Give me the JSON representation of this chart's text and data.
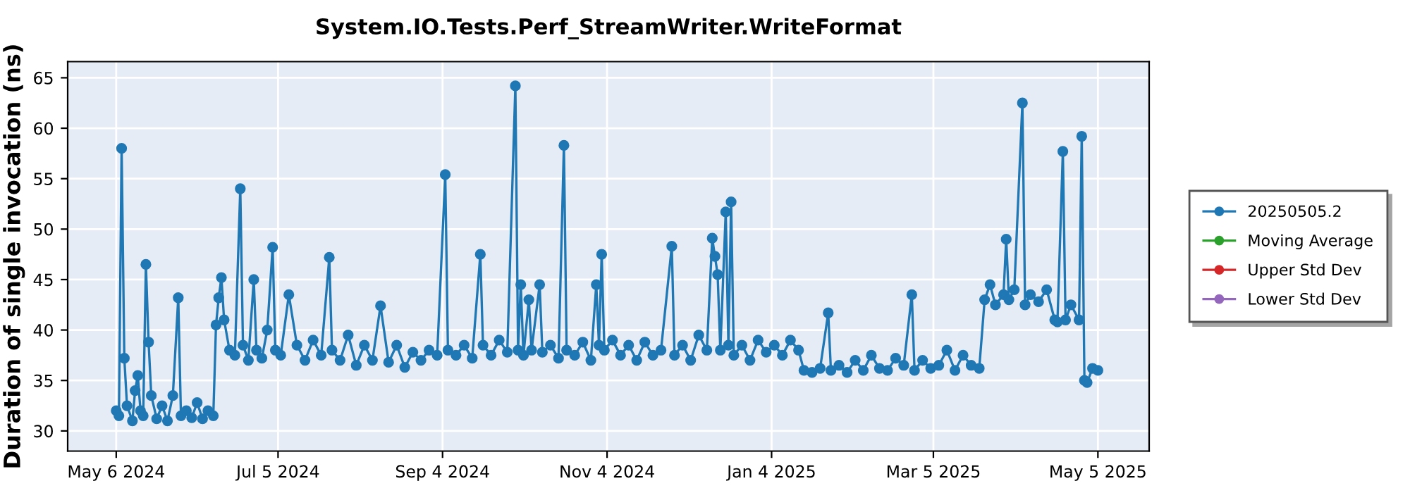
{
  "chart_data": {
    "type": "line",
    "title": "System.IO.Tests.Perf_StreamWriter.WriteFormat",
    "ylabel": "Duration of single invocation (ns)",
    "xlim": [
      "2024-04-18",
      "2025-05-24"
    ],
    "xticks": [
      {
        "value": "2024-05-06",
        "label": "May 6 2024"
      },
      {
        "value": "2024-07-05",
        "label": "Jul 5 2024"
      },
      {
        "value": "2024-09-04",
        "label": "Sep 4 2024"
      },
      {
        "value": "2024-11-04",
        "label": "Nov 4 2024"
      },
      {
        "value": "2025-01-04",
        "label": "Jan 4 2025"
      },
      {
        "value": "2025-03-05",
        "label": "Mar 5 2025"
      },
      {
        "value": "2025-05-05",
        "label": "May 5 2025"
      }
    ],
    "ylim": [
      28,
      66.6
    ],
    "yticks": [
      30,
      35,
      40,
      45,
      50,
      55,
      60,
      65
    ],
    "grid": true,
    "legend": "right",
    "marker": "circle",
    "line_style": "solid",
    "series": [
      {
        "name": "20250505.2",
        "color": "#1f77b4",
        "x": [
          "2024-05-06",
          "2024-05-07",
          "2024-05-08",
          "2024-05-09",
          "2024-05-10",
          "2024-05-12",
          "2024-05-13",
          "2024-05-14",
          "2024-05-15",
          "2024-05-16",
          "2024-05-17",
          "2024-05-18",
          "2024-05-19",
          "2024-05-21",
          "2024-05-23",
          "2024-05-25",
          "2024-05-27",
          "2024-05-29",
          "2024-05-30",
          "2024-06-01",
          "2024-06-03",
          "2024-06-05",
          "2024-06-07",
          "2024-06-09",
          "2024-06-11",
          "2024-06-12",
          "2024-06-13",
          "2024-06-14",
          "2024-06-15",
          "2024-06-17",
          "2024-06-19",
          "2024-06-21",
          "2024-06-22",
          "2024-06-24",
          "2024-06-26",
          "2024-06-27",
          "2024-06-29",
          "2024-07-01",
          "2024-07-03",
          "2024-07-04",
          "2024-07-06",
          "2024-07-09",
          "2024-07-12",
          "2024-07-15",
          "2024-07-18",
          "2024-07-21",
          "2024-07-24",
          "2024-07-25",
          "2024-07-28",
          "2024-07-31",
          "2024-08-03",
          "2024-08-06",
          "2024-08-09",
          "2024-08-12",
          "2024-08-15",
          "2024-08-18",
          "2024-08-21",
          "2024-08-24",
          "2024-08-27",
          "2024-08-30",
          "2024-09-02",
          "2024-09-05",
          "2024-09-06",
          "2024-09-09",
          "2024-09-12",
          "2024-09-15",
          "2024-09-18",
          "2024-09-19",
          "2024-09-22",
          "2024-09-25",
          "2024-09-28",
          "2024-10-01",
          "2024-10-02",
          "2024-10-03",
          "2024-10-04",
          "2024-10-06",
          "2024-10-07",
          "2024-10-10",
          "2024-10-11",
          "2024-10-14",
          "2024-10-17",
          "2024-10-19",
          "2024-10-20",
          "2024-10-23",
          "2024-10-26",
          "2024-10-29",
          "2024-10-31",
          "2024-11-01",
          "2024-11-02",
          "2024-11-03",
          "2024-11-06",
          "2024-11-09",
          "2024-11-12",
          "2024-11-15",
          "2024-11-18",
          "2024-11-21",
          "2024-11-24",
          "2024-11-28",
          "2024-11-29",
          "2024-12-02",
          "2024-12-05",
          "2024-12-08",
          "2024-12-11",
          "2024-12-13",
          "2024-12-14",
          "2024-12-15",
          "2024-12-16",
          "2024-12-18",
          "2024-12-19",
          "2024-12-20",
          "2024-12-21",
          "2024-12-24",
          "2024-12-27",
          "2024-12-30",
          "2025-01-02",
          "2025-01-05",
          "2025-01-08",
          "2025-01-11",
          "2025-01-14",
          "2025-01-16",
          "2025-01-19",
          "2025-01-22",
          "2025-01-25",
          "2025-01-26",
          "2025-01-29",
          "2025-02-01",
          "2025-02-04",
          "2025-02-07",
          "2025-02-10",
          "2025-02-13",
          "2025-02-16",
          "2025-02-19",
          "2025-02-22",
          "2025-02-25",
          "2025-02-26",
          "2025-03-01",
          "2025-03-04",
          "2025-03-07",
          "2025-03-10",
          "2025-03-13",
          "2025-03-16",
          "2025-03-19",
          "2025-03-22",
          "2025-03-24",
          "2025-03-26",
          "2025-03-28",
          "2025-03-31",
          "2025-04-01",
          "2025-04-02",
          "2025-04-04",
          "2025-04-07",
          "2025-04-08",
          "2025-04-10",
          "2025-04-13",
          "2025-04-16",
          "2025-04-19",
          "2025-04-20",
          "2025-04-22",
          "2025-04-23",
          "2025-04-25",
          "2025-04-28",
          "2025-04-29",
          "2025-04-30",
          "2025-05-01",
          "2025-05-03",
          "2025-05-05"
        ],
        "values": [
          32.0,
          31.5,
          58.0,
          37.2,
          32.5,
          31.0,
          34.0,
          35.5,
          32.0,
          31.5,
          46.5,
          38.8,
          33.5,
          31.2,
          32.5,
          31.0,
          33.5,
          43.2,
          31.5,
          32.0,
          31.3,
          32.8,
          31.2,
          32.0,
          31.5,
          40.5,
          43.2,
          45.2,
          41.0,
          38.0,
          37.5,
          54.0,
          38.5,
          37.0,
          45.0,
          38.0,
          37.2,
          40.0,
          48.2,
          38.0,
          37.5,
          43.5,
          38.5,
          37.0,
          39.0,
          37.5,
          47.2,
          38.0,
          37.0,
          39.5,
          36.5,
          38.5,
          37.0,
          42.4,
          36.8,
          38.5,
          36.3,
          37.8,
          37.0,
          38.0,
          37.5,
          55.4,
          38.0,
          37.5,
          38.5,
          37.2,
          47.5,
          38.5,
          37.5,
          39.0,
          37.8,
          64.2,
          38.0,
          44.5,
          37.5,
          43.0,
          38.0,
          44.5,
          37.8,
          38.5,
          37.2,
          58.3,
          38.0,
          37.5,
          38.8,
          37.0,
          44.5,
          38.5,
          47.5,
          38.0,
          39.0,
          37.5,
          38.5,
          37.0,
          38.8,
          37.5,
          38.0,
          48.3,
          37.5,
          38.5,
          37.0,
          39.5,
          38.0,
          49.1,
          47.3,
          45.5,
          38.0,
          51.7,
          38.5,
          52.7,
          37.5,
          38.5,
          37.0,
          39.0,
          37.8,
          38.5,
          37.5,
          39.0,
          38.0,
          36.0,
          35.8,
          36.2,
          41.7,
          36.0,
          36.5,
          35.8,
          37.0,
          36.0,
          37.5,
          36.2,
          36.0,
          37.2,
          36.5,
          43.5,
          36.0,
          37.0,
          36.2,
          36.5,
          38.0,
          36.0,
          37.5,
          36.5,
          36.2,
          43.0,
          44.5,
          42.5,
          43.5,
          49.0,
          43.0,
          44.0,
          62.5,
          42.5,
          43.5,
          42.8,
          44.0,
          41.0,
          40.8,
          57.7,
          41.0,
          42.5,
          41.0,
          59.2,
          35.0,
          34.8,
          36.2,
          36.0
        ]
      },
      {
        "name": "Moving Average",
        "color": "#2ca02c"
      },
      {
        "name": "Upper Std Dev",
        "color": "#d62728"
      },
      {
        "name": "Lower Std Dev",
        "color": "#9467bd"
      }
    ]
  }
}
